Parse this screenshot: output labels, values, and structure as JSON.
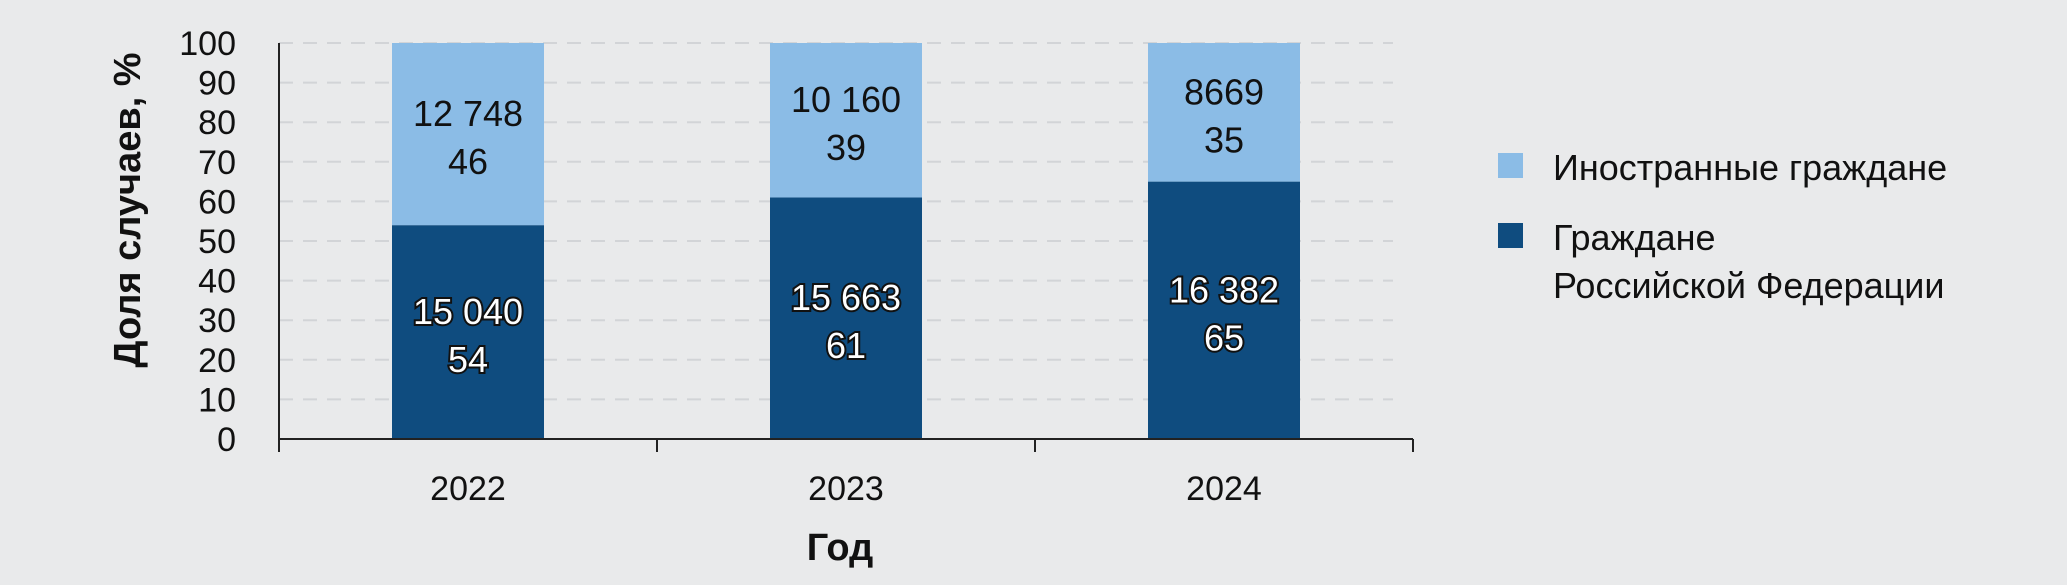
{
  "chart_data": {
    "type": "bar",
    "stacked": true,
    "categories": [
      "2022",
      "2023",
      "2024"
    ],
    "series": [
      {
        "name": "Граждане Российской Федерации",
        "name_lines": [
          "Граждане",
          "Российской Федерации"
        ],
        "color": "#0f4c7f",
        "values": [
          54,
          61,
          65
        ],
        "counts": [
          "15 040",
          "15 663",
          "16 382"
        ]
      },
      {
        "name": "Иностранные граждане",
        "name_lines": [
          "Иностранные граждане"
        ],
        "color": "#8bbce6",
        "values": [
          46,
          39,
          35
        ],
        "counts": [
          "12 748",
          "10 160",
          "8669"
        ]
      }
    ],
    "xlabel": "Год",
    "ylabel": "Доля случаев, %",
    "ylim": [
      0,
      100
    ],
    "yticks": [
      0,
      10,
      20,
      30,
      40,
      50,
      60,
      70,
      80,
      90,
      100
    ],
    "grid": true,
    "legend_position": "right"
  }
}
